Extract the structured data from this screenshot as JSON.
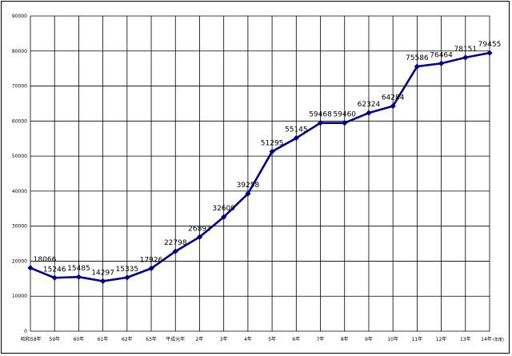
{
  "chart_data": {
    "type": "line",
    "categories": [
      "昭和58年",
      "59年",
      "60年",
      "61年",
      "62年",
      "63年",
      "平成元年",
      "2年",
      "3年",
      "4年",
      "5年",
      "6年",
      "7年",
      "8年",
      "9年",
      "10年",
      "11年",
      "12年",
      "13年",
      "14年"
    ],
    "series": [
      {
        "values": [
          18066,
          15246,
          15485,
          14297,
          15335,
          17926,
          22798,
          26893,
          32609,
          39258,
          51295,
          55145,
          59468,
          59460,
          62324,
          64284,
          75586,
          76464,
          78151,
          79455
        ]
      }
    ],
    "data_labels": [
      "18066",
      "15246",
      "15485",
      "14297",
      "15335",
      "17926",
      "22798",
      "26893",
      "32609",
      "39258",
      "51295",
      "55145",
      "59468",
      "59460",
      "62324",
      "64284",
      "75586",
      "76464",
      "78151",
      "79455"
    ],
    "y_ticks": [
      "0",
      "10000",
      "20000",
      "30000",
      "40000",
      "50000",
      "60000",
      "70000",
      "80000",
      "90000"
    ],
    "ylim": [
      0,
      90000
    ],
    "x_unit": "(年度)",
    "grid": true,
    "colors": {
      "line": "#000080",
      "marker": "#000080",
      "grid": "#000000"
    }
  }
}
